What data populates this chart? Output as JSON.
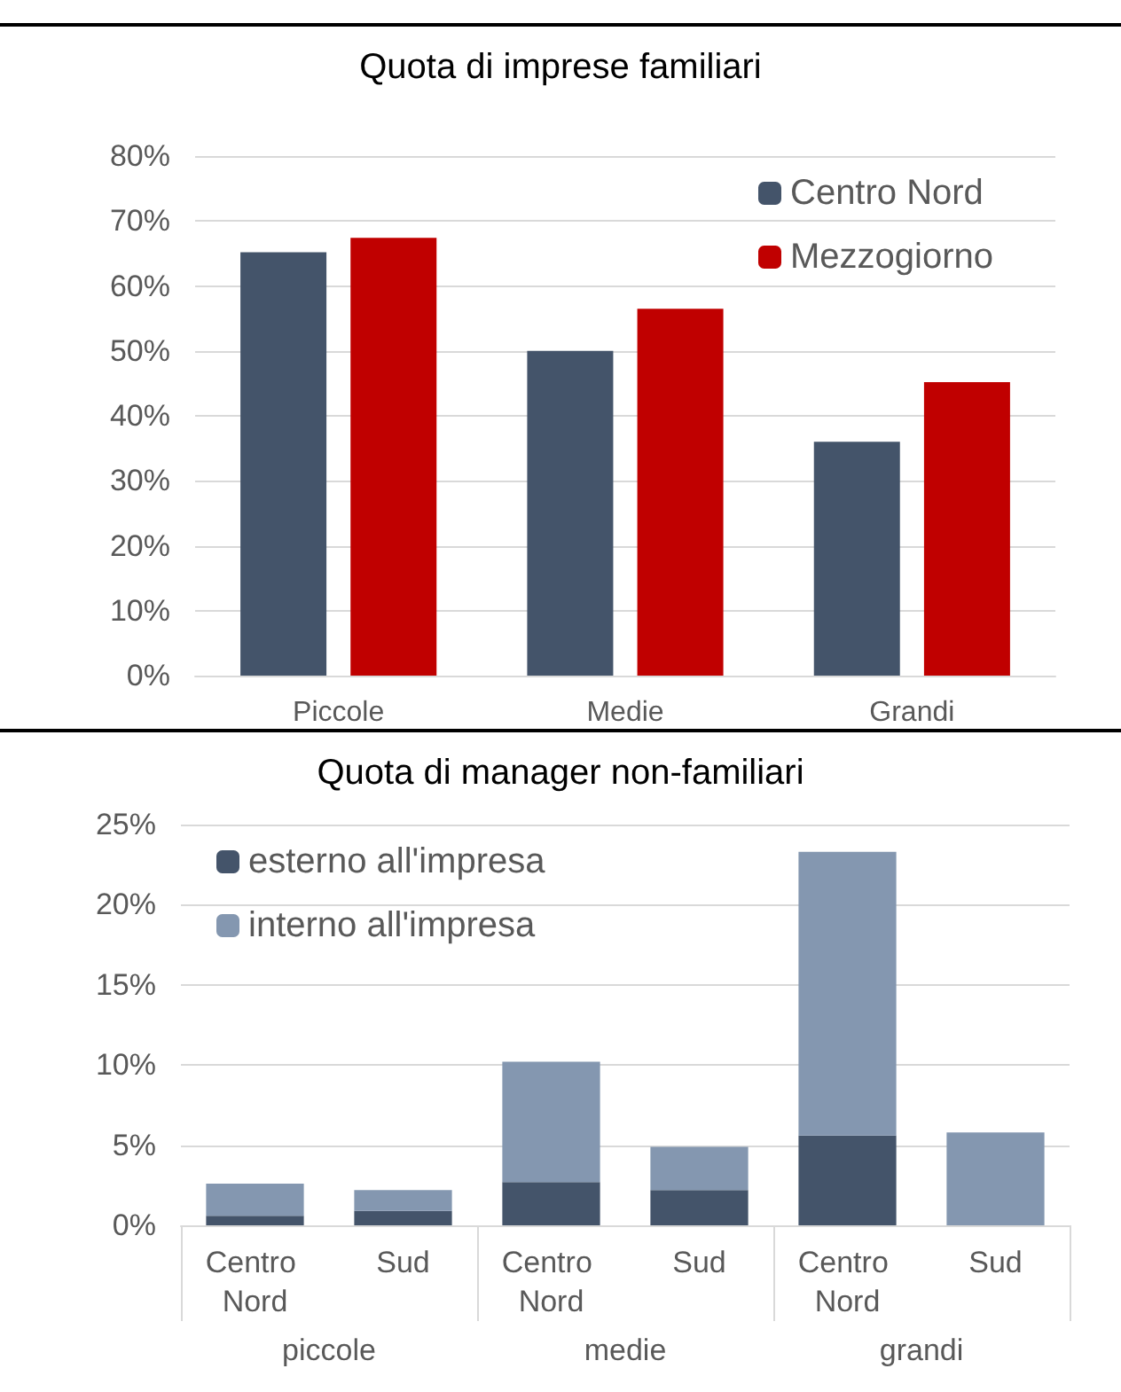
{
  "chart_data": [
    {
      "type": "bar",
      "title": "Quota di imprese familiari",
      "categories": [
        "Piccole",
        "Medie",
        "Grandi"
      ],
      "series": [
        {
          "name": "Centro Nord",
          "color": "#44546a",
          "values": [
            65.2,
            50,
            36
          ]
        },
        {
          "name": "Mezzogiorno",
          "color": "#c00000",
          "values": [
            67.4,
            56.5,
            45.2
          ]
        }
      ],
      "ylim": [
        0,
        80
      ],
      "yticks": [
        {
          "value": 0,
          "label": "0%"
        },
        {
          "value": 10,
          "label": "10%"
        },
        {
          "value": 20,
          "label": "20%"
        },
        {
          "value": 30,
          "label": "30%"
        },
        {
          "value": 40,
          "label": "40%"
        },
        {
          "value": 50,
          "label": "50%"
        },
        {
          "value": 60,
          "label": "60%"
        },
        {
          "value": 70,
          "label": "70%"
        },
        {
          "value": 80,
          "label": "80%"
        }
      ],
      "grid": "y",
      "legend": "top right"
    },
    {
      "type": "bar",
      "title": "Quota di manager non-familiari",
      "categories": [
        "Centro Nord",
        "Sud",
        "Centro Nord",
        "Sud",
        "Centro Nord",
        "Sud"
      ],
      "annotations": [
        "piccole",
        "medie",
        "grandi"
      ],
      "stacked": true,
      "series": [
        {
          "name": "esterno all'impresa",
          "color": "#44546a",
          "values": [
            0.6,
            0.9,
            2.7,
            2.2,
            5.6,
            0
          ]
        },
        {
          "name": "interno all'impresa",
          "color": "#8497b0",
          "values": [
            2.0,
            1.3,
            7.5,
            2.7,
            17.7,
            5.8
          ]
        }
      ],
      "ylim": [
        0,
        25
      ],
      "yticks": [
        {
          "value": 0,
          "label": "0%"
        },
        {
          "value": 5,
          "label": "5%"
        },
        {
          "value": 10,
          "label": "10%"
        },
        {
          "value": 15,
          "label": "15%"
        },
        {
          "value": 20,
          "label": "20%"
        },
        {
          "value": 25,
          "label": "25%"
        }
      ],
      "grid": "y",
      "legend": "top left"
    }
  ]
}
